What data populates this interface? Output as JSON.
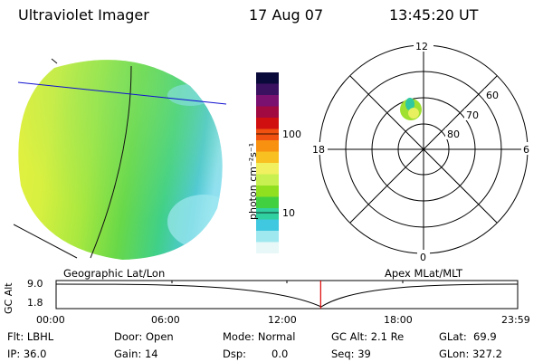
{
  "header": {
    "instrument": "Ultraviolet Imager",
    "date": "17 Aug 07",
    "time": "13:45:20 UT"
  },
  "colorbar": {
    "unit_label": "photon cm⁻²s⁻¹",
    "ticks": [
      "100",
      "10"
    ],
    "colors": [
      "#0a0a3a",
      "#3a1060",
      "#7a1070",
      "#a00a40",
      "#d01010",
      "#f05010",
      "#f89010",
      "#f8c020",
      "#f0f060",
      "#c8f050",
      "#90e020",
      "#40d040",
      "#30d0a0",
      "#40c8e0",
      "#a0e8f0",
      "#e8f8f8"
    ]
  },
  "polar_plot": {
    "mlt_labels": {
      "top": "12",
      "bottom": "0",
      "left": "18",
      "right": "6"
    },
    "lat_labels": [
      "60",
      "70",
      "80"
    ]
  },
  "timeline": {
    "left_title": "Geographic Lat/Lon",
    "right_title": "Apex MLat/MLT",
    "ylabel": "GC Alt",
    "y_ticks": [
      "9.0",
      "1.8"
    ],
    "x_ticks": [
      "00:00",
      "06:00",
      "12:00",
      "18:00",
      "23:59"
    ],
    "current_time_fraction": 0.5732,
    "marker_color": "#dd0000"
  },
  "status": {
    "flt": "Flt: LBHL",
    "ip": "IP: 36.0",
    "door": "Door: Open",
    "gain": "Gain: 14",
    "mode": "Mode: Normal",
    "dsp": "Dsp:",
    "dsp_value": "0.0",
    "gc_alt": "GC Alt: 2.1 Re",
    "seq": "Seq: 39",
    "glat": "GLat:  69.9",
    "glon": "GLon: 327.2"
  }
}
